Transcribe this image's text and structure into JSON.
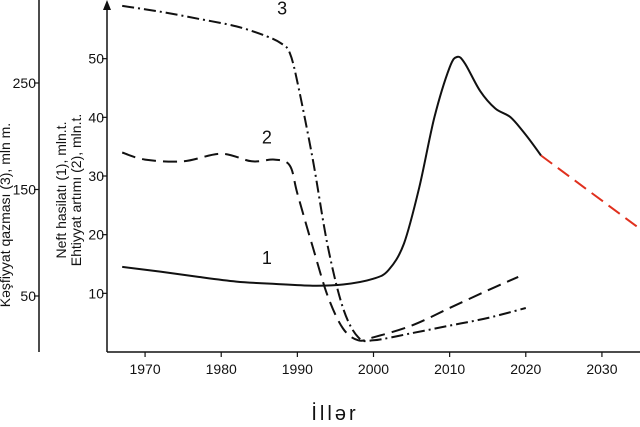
{
  "chart_data": {
    "type": "line",
    "xlabel": "İllər",
    "ylabel_left_outer": "Kəşfiyyat qazması (3), mln m.",
    "ylabel_left_inner_1": "Neft hasilatı (1), mln.t.",
    "ylabel_left_inner_2": "Ehtiyyat artımı (2), mln.t.",
    "x_ticks": [
      "1970",
      "1980",
      "1990",
      "2000",
      "2010",
      "2020",
      "2030"
    ],
    "y_ticks_inner": [
      "10",
      "20",
      "30",
      "40",
      "50"
    ],
    "y_ticks_outer": [
      "50",
      "150",
      "250"
    ],
    "xlim": [
      1965,
      2035
    ],
    "ylim_inner": [
      0,
      60
    ],
    "grid": false,
    "series": [
      {
        "name": "1",
        "style": "solid",
        "color": "#111111",
        "x": [
          1967,
          1972,
          1977,
          1982,
          1987,
          1992,
          1996,
          2000,
          2002,
          2004,
          2006,
          2008,
          2010,
          2011,
          2012,
          2014,
          2016,
          2018,
          2020,
          2022
        ],
        "y": [
          14.5,
          13.7,
          12.8,
          12.0,
          11.6,
          11.3,
          11.5,
          12.5,
          14.0,
          18.5,
          28.0,
          40.0,
          48.5,
          50.3,
          49.2,
          44.5,
          41.5,
          40.0,
          37.0,
          33.5
        ]
      },
      {
        "name": "forecast",
        "style": "dashed",
        "color": "#e0301e",
        "x": [
          2022,
          2035
        ],
        "y": [
          33.5,
          21.0
        ]
      },
      {
        "name": "2",
        "style": "dashed",
        "color": "#111111",
        "x": [
          1967,
          1970,
          1975,
          1980,
          1984,
          1987,
          1989,
          1990,
          1992,
          1994,
          1996,
          1998,
          2000,
          2005,
          2010,
          2015,
          2019
        ],
        "y": [
          34.0,
          32.8,
          32.5,
          33.8,
          32.5,
          32.8,
          31.8,
          27.0,
          18.0,
          9.5,
          4.0,
          2.0,
          2.5,
          4.5,
          7.5,
          10.5,
          12.8
        ]
      },
      {
        "name": "3",
        "style": "dashdot",
        "color": "#111111",
        "x": [
          1967,
          1972,
          1977,
          1982,
          1986,
          1988,
          1989,
          1990,
          1992,
          1994,
          1996,
          1998,
          2000,
          2005,
          2010,
          2015,
          2020
        ],
        "y": [
          59.0,
          58.0,
          56.8,
          55.5,
          53.8,
          52.5,
          51.0,
          46.0,
          33.0,
          18.0,
          7.5,
          2.5,
          2.0,
          3.2,
          4.5,
          5.8,
          7.5
        ]
      }
    ],
    "curve_labels": [
      {
        "text": "1",
        "x": 1986,
        "y": 15.0
      },
      {
        "text": "2",
        "x": 1986,
        "y": 35.5
      },
      {
        "text": "3",
        "x": 1988,
        "y": 57.5
      }
    ]
  }
}
